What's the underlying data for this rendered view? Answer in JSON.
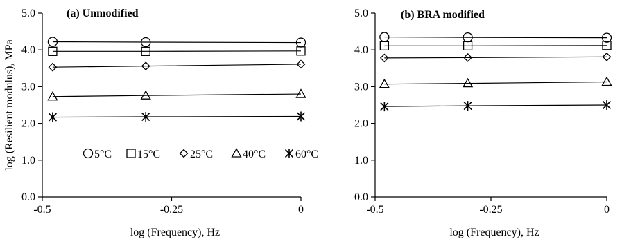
{
  "chart_data": [
    {
      "type": "line",
      "title": "(a) Unmodified",
      "xlabel": "log (Frequency), Hz",
      "ylabel": "log (Resilient modulus), MPa",
      "xlim": [
        -0.5,
        0
      ],
      "ylim": [
        0,
        5
      ],
      "xticks": [
        -0.5,
        -0.25,
        0
      ],
      "xtick_labels": [
        "-0.5",
        "-0.25",
        "0"
      ],
      "yticks": [
        0,
        1,
        2,
        3,
        4,
        5
      ],
      "ytick_labels": [
        "0.0",
        "1.0",
        "2.0",
        "3.0",
        "4.0",
        "5.0"
      ],
      "grid": false,
      "legend": "inside, lower middle, single row",
      "x": [
        -0.48,
        -0.3,
        0
      ],
      "series": [
        {
          "name": "5°C",
          "marker": "circle",
          "values": [
            4.22,
            4.21,
            4.2
          ]
        },
        {
          "name": "15°C",
          "marker": "square",
          "values": [
            3.96,
            3.96,
            3.97
          ]
        },
        {
          "name": "25°C",
          "marker": "diamond",
          "values": [
            3.53,
            3.56,
            3.61
          ]
        },
        {
          "name": "40°C",
          "marker": "triangle",
          "values": [
            2.73,
            2.76,
            2.8
          ]
        },
        {
          "name": "60°C",
          "marker": "asterisk",
          "values": [
            2.17,
            2.18,
            2.19
          ]
        }
      ]
    },
    {
      "type": "line",
      "title": "(b) BRA modified",
      "xlabel": "log (Frequency), Hz",
      "ylabel": "",
      "xlim": [
        -0.5,
        0
      ],
      "ylim": [
        0,
        5
      ],
      "xticks": [
        -0.5,
        -0.25,
        0
      ],
      "xtick_labels": [
        "-0.5",
        "-0.25",
        "0"
      ],
      "yticks": [
        0,
        1,
        2,
        3,
        4,
        5
      ],
      "ytick_labels": [
        "0.0",
        "1.0",
        "2.0",
        "3.0",
        "4.0",
        "5.0"
      ],
      "grid": false,
      "x": [
        -0.48,
        -0.3,
        0
      ],
      "series": [
        {
          "name": "5°C",
          "marker": "circle",
          "values": [
            4.35,
            4.34,
            4.33
          ]
        },
        {
          "name": "15°C",
          "marker": "square",
          "values": [
            4.11,
            4.11,
            4.12
          ]
        },
        {
          "name": "25°C",
          "marker": "diamond",
          "values": [
            3.78,
            3.79,
            3.81
          ]
        },
        {
          "name": "40°C",
          "marker": "triangle",
          "values": [
            3.07,
            3.09,
            3.13
          ]
        },
        {
          "name": "60°C",
          "marker": "asterisk",
          "values": [
            2.46,
            2.48,
            2.5
          ]
        }
      ]
    }
  ]
}
